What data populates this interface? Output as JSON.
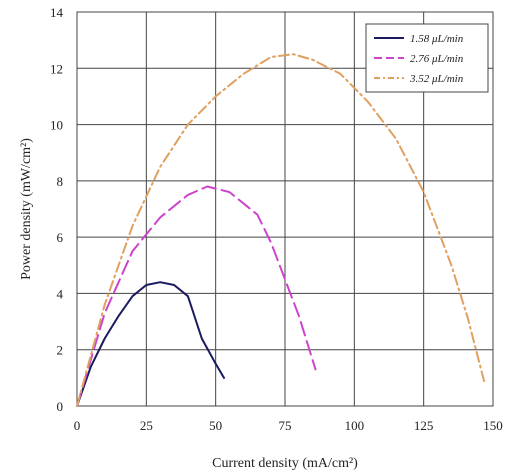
{
  "chart_data": {
    "type": "line",
    "title": "",
    "xlabel": "Current density (mA/cm²)",
    "ylabel": "Power density (mW/cm²)",
    "xlim": [
      0,
      150
    ],
    "ylim": [
      0,
      14
    ],
    "x_ticks": [
      0,
      25,
      50,
      75,
      100,
      125,
      150
    ],
    "y_ticks": [
      0,
      2,
      4,
      6,
      8,
      10,
      12,
      14
    ],
    "grid": true,
    "legend_position": "top-right",
    "series": [
      {
        "name": "1.58 μL/min",
        "color": "#1a1a5e",
        "dash": "solid",
        "x": [
          0,
          5,
          10,
          15,
          20,
          25,
          30,
          35,
          40,
          45,
          50,
          53
        ],
        "y": [
          0,
          1.4,
          2.4,
          3.2,
          3.9,
          4.3,
          4.4,
          4.3,
          3.9,
          2.4,
          1.5,
          1.0
        ]
      },
      {
        "name": "2.76 μL/min",
        "color": "#cc44cc",
        "dash": "long-dash",
        "x": [
          0,
          10,
          20,
          30,
          40,
          47,
          55,
          65,
          70,
          75,
          80,
          86
        ],
        "y": [
          0,
          3.3,
          5.5,
          6.7,
          7.5,
          7.8,
          7.6,
          6.8,
          5.8,
          4.5,
          3.2,
          1.3
        ]
      },
      {
        "name": "3.52 μL/min",
        "color": "#e0a060",
        "dash": "dash-dot",
        "x": [
          0,
          10,
          20,
          30,
          40,
          50,
          60,
          70,
          78,
          85,
          95,
          105,
          115,
          125,
          135,
          141,
          147
        ],
        "y": [
          0,
          3.6,
          6.4,
          8.5,
          10.0,
          11.0,
          11.8,
          12.4,
          12.5,
          12.3,
          11.8,
          10.8,
          9.5,
          7.6,
          5.0,
          3.1,
          0.8
        ]
      }
    ]
  }
}
